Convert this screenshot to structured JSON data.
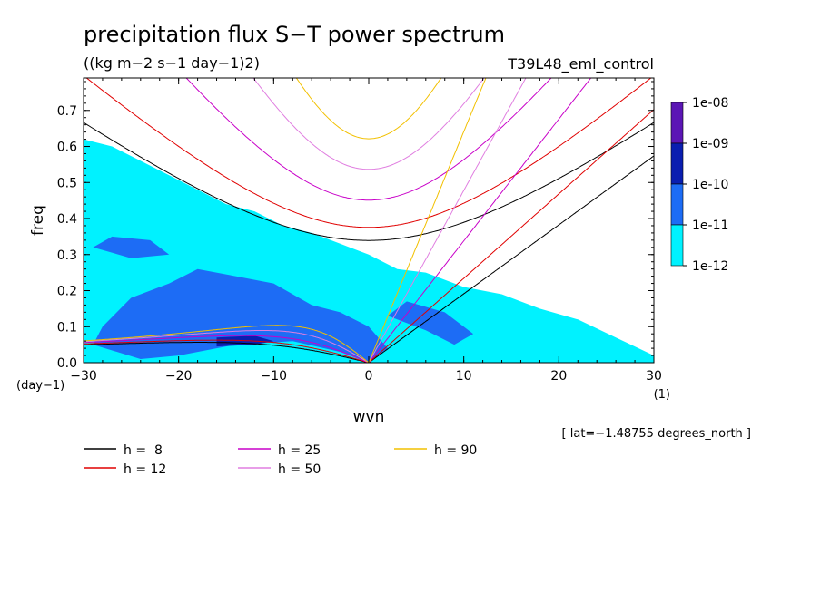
{
  "chart_data": {
    "type": "heatmap",
    "title": "precipitation flux S−T power spectrum",
    "subtitle": "((kg m−2 s−1 day−1)2)",
    "run_label": "T39L48_eml_control",
    "xlabel": "wvn",
    "ylabel": "freq",
    "x_units": "(1)",
    "y_units": "(day−1)",
    "annotation": "[ lat=−1.48755 degrees_north ]",
    "xlim": [
      -30,
      30
    ],
    "ylim": [
      0,
      0.79
    ],
    "x_ticks": [
      -30,
      -20,
      -10,
      0,
      10,
      20,
      30
    ],
    "x_tick_labels": [
      "−30",
      "−20",
      "−10",
      "0",
      "10",
      "20",
      "30"
    ],
    "y_ticks": [
      0,
      0.1,
      0.2,
      0.3,
      0.4,
      0.5,
      0.6,
      0.7
    ],
    "y_tick_labels": [
      "0.0",
      "0.1",
      "0.2",
      "0.3",
      "0.4",
      "0.5",
      "0.6",
      "0.7"
    ],
    "colorbar": {
      "levels": [
        "1e-08",
        "1e-09",
        "1e-10",
        "1e-11",
        "1e-12"
      ],
      "colors": [
        "#5b16b5",
        "#0a1eb0",
        "#1d6cf5",
        "#00f2ff"
      ]
    },
    "contours": [
      {
        "label": "1e-12",
        "color": "#00f2ff",
        "polygon": [
          [
            -30,
            0
          ],
          [
            30,
            0
          ],
          [
            30,
            0.02
          ],
          [
            26,
            0.07
          ],
          [
            22,
            0.12
          ],
          [
            18,
            0.15
          ],
          [
            14,
            0.19
          ],
          [
            10,
            0.21
          ],
          [
            6,
            0.25
          ],
          [
            3,
            0.26
          ],
          [
            0,
            0.3
          ],
          [
            -3,
            0.33
          ],
          [
            -6,
            0.36
          ],
          [
            -9,
            0.38
          ],
          [
            -12,
            0.42
          ],
          [
            -15,
            0.44
          ],
          [
            -18,
            0.48
          ],
          [
            -21,
            0.52
          ],
          [
            -24,
            0.56
          ],
          [
            -27,
            0.6
          ],
          [
            -30,
            0.62
          ]
        ]
      },
      {
        "label": "1e-11",
        "color": "#1d6cf5",
        "polygon": [
          [
            -24,
            0.01
          ],
          [
            -20,
            0.02
          ],
          [
            -14,
            0.05
          ],
          [
            -8,
            0.06
          ],
          [
            -3,
            0.03
          ],
          [
            0,
            0.0
          ],
          [
            2,
            0.04
          ],
          [
            0,
            0.1
          ],
          [
            -3,
            0.14
          ],
          [
            -6,
            0.16
          ],
          [
            -10,
            0.22
          ],
          [
            -14,
            0.24
          ],
          [
            -18,
            0.26
          ],
          [
            -21,
            0.22
          ],
          [
            -25,
            0.18
          ],
          [
            -28,
            0.1
          ],
          [
            -29,
            0.05
          ]
        ]
      },
      {
        "label": "1e-11",
        "color": "#1d6cf5",
        "polygon": [
          [
            2,
            0.13
          ],
          [
            6,
            0.09
          ],
          [
            9,
            0.05
          ],
          [
            11,
            0.08
          ],
          [
            8,
            0.14
          ],
          [
            4,
            0.17
          ]
        ]
      },
      {
        "label": "1e-11",
        "color": "#1d6cf5",
        "polygon": [
          [
            -29,
            0.32
          ],
          [
            -25,
            0.29
          ],
          [
            -21,
            0.3
          ],
          [
            -23,
            0.34
          ],
          [
            -27,
            0.35
          ]
        ]
      },
      {
        "label": "1e-10",
        "color": "#0a1eb0",
        "polygon": [
          [
            -16,
            0.045
          ],
          [
            -12,
            0.05
          ],
          [
            -10,
            0.06
          ],
          [
            -12,
            0.075
          ],
          [
            -16,
            0.07
          ]
        ]
      }
    ],
    "series": [
      {
        "name": "h =  8",
        "color": "#000000",
        "values": [
          -30,
          8
        ]
      },
      {
        "name": "h = 12",
        "color": "#e00000",
        "values": [
          -30,
          12
        ]
      },
      {
        "name": "h = 25",
        "color": "#c800c8",
        "values": [
          -30,
          25
        ]
      },
      {
        "name": "h = 50",
        "color": "#e07ee0",
        "values": [
          -30,
          50
        ]
      },
      {
        "name": "h = 90",
        "color": "#f2c000",
        "values": [
          -30,
          90
        ]
      }
    ]
  }
}
